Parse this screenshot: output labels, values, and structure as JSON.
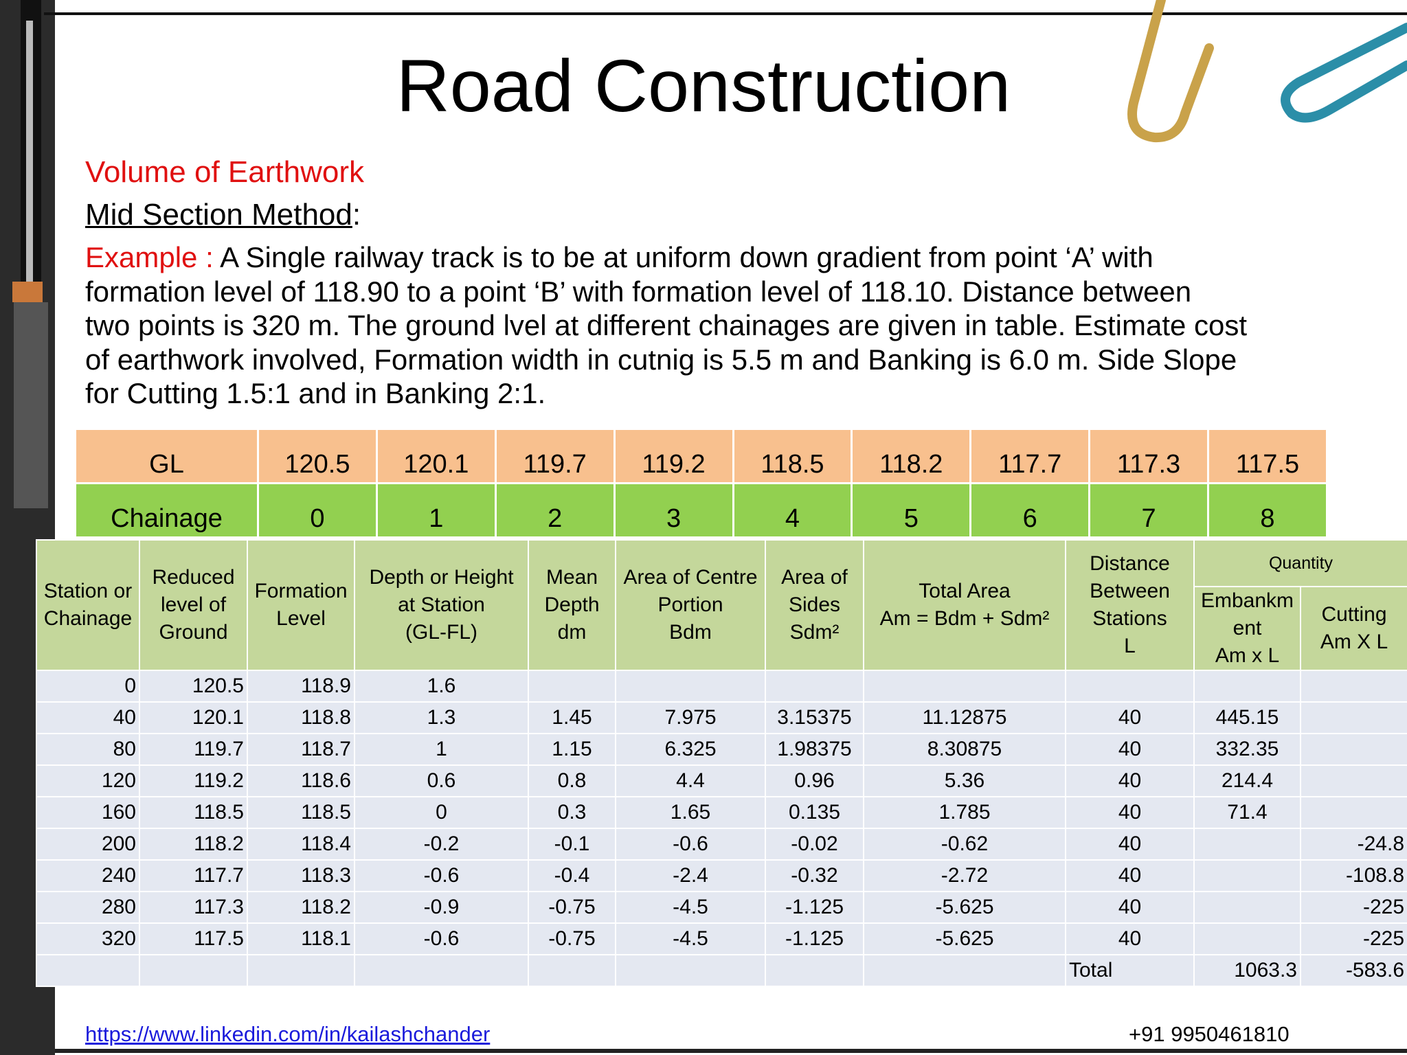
{
  "title": "Road Construction",
  "subtitle": "Volume of Earthwork",
  "heading": "Mid Section Method",
  "heading_suffix": ":",
  "example_label": "Example :",
  "example_lines": [
    "A Single railway track is to be at uniform down gradient from point ‘A’ with",
    "formation level of 118.90 to a point ‘B’ with formation level of 118.10. Distance between",
    "two points is 320 m. The ground lvel at different chainages are given in table. Estimate cost",
    "of earthwork involved, Formation width in cutnig is 5.5 m and Banking is 6.0 m. Side Slope",
    "for Cutting 1.5:1 and in Banking 2:1."
  ],
  "given_table": {
    "rows": [
      [
        "GL",
        "120.5",
        "120.1",
        "119.7",
        "119.2",
        "118.5",
        "118.2",
        "117.7",
        "117.3",
        "117.5"
      ],
      [
        "Chainage",
        "0",
        "1",
        "2",
        "3",
        "4",
        "5",
        "6",
        "7",
        "8"
      ]
    ]
  },
  "table": {
    "headers": [
      "Station or\nChainage",
      "Reduced\nlevel of\nGround",
      "Formation\nLevel",
      "Depth or Height\nat Station\n(GL-FL)",
      "Mean\nDepth\ndm",
      "Area of Centre\nPortion\nBdm",
      "Area of\nSides\nSdm²",
      "Total Area\nAm = Bdm + Sdm²",
      "Distance\nBetween\nStations\nL"
    ],
    "group_header": "Quantity",
    "sub_headers": [
      "Embankm\nent\nAm x L",
      "Cutting\nAm X L"
    ],
    "rows": [
      [
        "0",
        "120.5",
        "118.9",
        "1.6",
        null,
        null,
        null,
        null,
        null,
        null,
        null
      ],
      [
        "40",
        "120.1",
        "118.8",
        "1.3",
        "1.45",
        "7.975",
        "3.15375",
        "11.12875",
        "40",
        "445.15",
        null
      ],
      [
        "80",
        "119.7",
        "118.7",
        "1",
        "1.15",
        "6.325",
        "1.98375",
        "8.30875",
        "40",
        "332.35",
        null
      ],
      [
        "120",
        "119.2",
        "118.6",
        "0.6",
        "0.8",
        "4.4",
        "0.96",
        "5.36",
        "40",
        "214.4",
        null
      ],
      [
        "160",
        "118.5",
        "118.5",
        "0",
        "0.3",
        "1.65",
        "0.135",
        "1.785",
        "40",
        "71.4",
        null
      ],
      [
        "200",
        "118.2",
        "118.4",
        "-0.2",
        "-0.1",
        "-0.6",
        "-0.02",
        "-0.62",
        "40",
        null,
        "-24.8"
      ],
      [
        "240",
        "117.7",
        "118.3",
        "-0.6",
        "-0.4",
        "-2.4",
        "-0.32",
        "-2.72",
        "40",
        null,
        "-108.8"
      ],
      [
        "280",
        "117.3",
        "118.2",
        "-0.9",
        "-0.75",
        "-4.5",
        "-1.125",
        "-5.625",
        "40",
        null,
        "-225"
      ],
      [
        "320",
        "117.5",
        "118.1",
        "-0.6",
        "-0.75",
        "-4.5",
        "-1.125",
        "-5.625",
        "40",
        null,
        "-225"
      ]
    ],
    "total": {
      "label": "Total",
      "embankment": "1063.3",
      "cutting": "-583.6"
    }
  },
  "footer": {
    "link": "https://www.linkedin.com/in/kailashchander",
    "phone": "+91 9950461810"
  }
}
